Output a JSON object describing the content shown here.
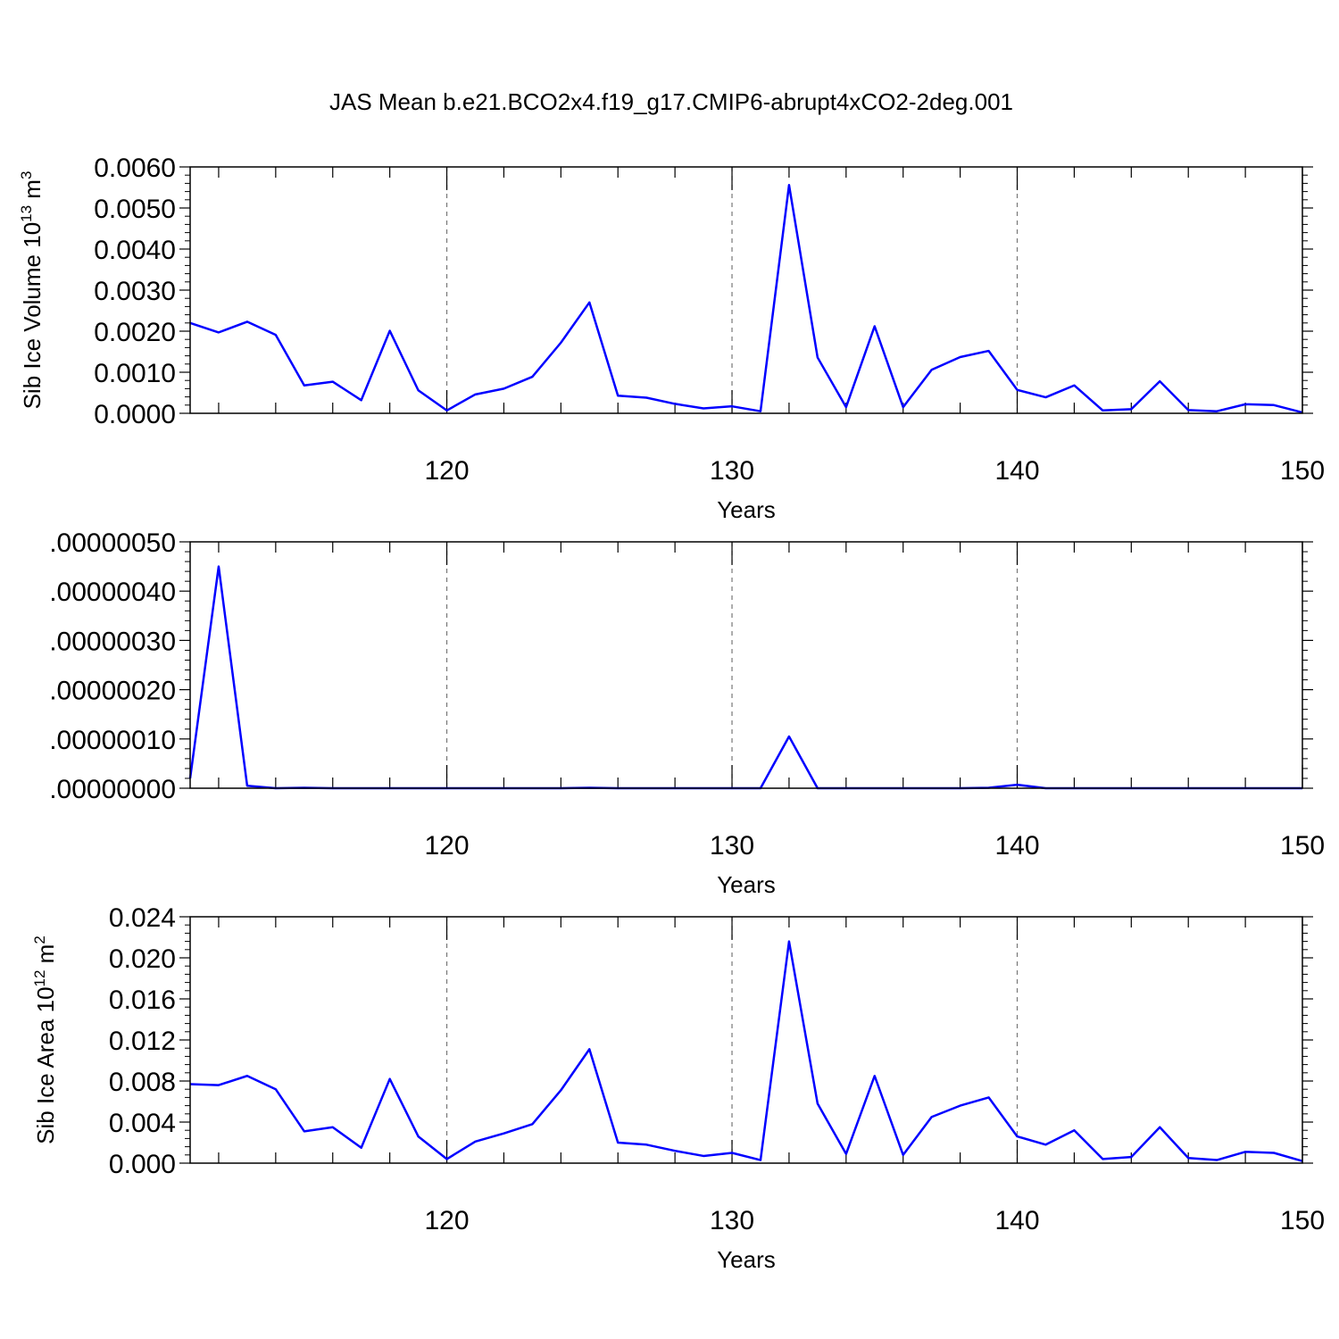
{
  "figure_title": "JAS Mean b.e21.BCO2x4.f19_g17.CMIP6-abrupt4xCO2-2deg.001",
  "line_color": "#0000ff",
  "chart_data": [
    {
      "type": "line",
      "ylabel": "Sib Ice Volume 10",
      "ylabel_exp": "13",
      "ylabel_unit": " m",
      "ylabel_unit_exp": "3",
      "xlabel": "Years",
      "xlim": [
        111,
        150
      ],
      "ylim": [
        0,
        0.006
      ],
      "yticks": [
        "0.0000",
        "0.0010",
        "0.0020",
        "0.0030",
        "0.0040",
        "0.0050",
        "0.0060"
      ],
      "ytick_values": [
        0,
        0.001,
        0.002,
        0.003,
        0.004,
        0.005,
        0.006
      ],
      "xticks": [
        "120",
        "130",
        "140",
        "150"
      ],
      "xtick_values": [
        120,
        130,
        140,
        150
      ],
      "grid": "dashed vertical at major x ticks",
      "x": [
        111,
        112,
        113,
        114,
        115,
        116,
        117,
        118,
        119,
        120,
        121,
        122,
        123,
        124,
        125,
        126,
        127,
        128,
        129,
        130,
        131,
        132,
        133,
        134,
        135,
        136,
        137,
        138,
        139,
        140,
        141,
        142,
        143,
        144,
        145,
        146,
        147,
        148,
        149,
        150
      ],
      "series": [
        {
          "values": [
            0.0022,
            0.00197,
            0.00223,
            0.00191,
            0.00068,
            0.00077,
            0.00032,
            0.00201,
            0.00056,
            7e-05,
            0.00046,
            0.0006,
            0.00089,
            0.00172,
            0.0027,
            0.00043,
            0.00038,
            0.00023,
            0.00012,
            0.00017,
            5e-05,
            0.00556,
            0.00136,
            0.00015,
            0.00212,
            0.00015,
            0.00106,
            0.00137,
            0.00152,
            0.00057,
            0.00039,
            0.00068,
            7e-05,
            0.0001,
            0.00078,
            8e-05,
            5e-05,
            0.00022,
            0.0002,
            2e-05
          ]
        }
      ]
    },
    {
      "type": "line",
      "xlabel": "Years",
      "xlim": [
        111,
        150
      ],
      "ylim": [
        0,
        5e-07
      ],
      "yticks": [
        ".00000000",
        ".00000010",
        ".00000020",
        ".00000030",
        ".00000040",
        ".00000050"
      ],
      "ytick_values": [
        0,
        1e-07,
        2e-07,
        3e-07,
        4e-07,
        5e-07
      ],
      "xticks": [
        "120",
        "130",
        "140",
        "150"
      ],
      "xtick_values": [
        120,
        130,
        140,
        150
      ],
      "grid": "dashed vertical at major x ticks",
      "x": [
        111,
        112,
        113,
        114,
        115,
        116,
        117,
        118,
        119,
        120,
        121,
        122,
        123,
        124,
        125,
        126,
        127,
        128,
        129,
        130,
        131,
        132,
        133,
        134,
        135,
        136,
        137,
        138,
        139,
        140,
        141,
        142,
        143,
        144,
        145,
        146,
        147,
        148,
        149,
        150
      ],
      "series": [
        {
          "values": [
            2e-08,
            4.5e-07,
            5e-09,
            0.0,
            1e-09,
            0.0,
            0.0,
            0.0,
            0.0,
            0.0,
            0.0,
            0.0,
            0.0,
            0.0,
            1e-09,
            0.0,
            0.0,
            0.0,
            0.0,
            0.0,
            0.0,
            1.05e-07,
            0.0,
            0.0,
            0.0,
            0.0,
            0.0,
            0.0,
            1e-09,
            7e-09,
            0.0,
            0.0,
            0.0,
            0.0,
            0.0,
            0.0,
            0.0,
            0.0,
            0.0,
            0.0
          ]
        }
      ]
    },
    {
      "type": "line",
      "ylabel": "Sib Ice Area 10",
      "ylabel_exp": "12",
      "ylabel_unit": " m",
      "ylabel_unit_exp": "2",
      "xlabel": "Years",
      "xlim": [
        111,
        150
      ],
      "ylim": [
        0,
        0.024
      ],
      "yticks": [
        "0.000",
        "0.004",
        "0.008",
        "0.012",
        "0.016",
        "0.020",
        "0.024"
      ],
      "ytick_values": [
        0,
        0.004,
        0.008,
        0.012,
        0.016,
        0.02,
        0.024
      ],
      "xticks": [
        "120",
        "130",
        "140",
        "150"
      ],
      "xtick_values": [
        120,
        130,
        140,
        150
      ],
      "grid": "dashed vertical at major x ticks",
      "x": [
        111,
        112,
        113,
        114,
        115,
        116,
        117,
        118,
        119,
        120,
        121,
        122,
        123,
        124,
        125,
        126,
        127,
        128,
        129,
        130,
        131,
        132,
        133,
        134,
        135,
        136,
        137,
        138,
        139,
        140,
        141,
        142,
        143,
        144,
        145,
        146,
        147,
        148,
        149,
        150
      ],
      "series": [
        {
          "values": [
            0.0077,
            0.0076,
            0.0085,
            0.0072,
            0.0031,
            0.0035,
            0.0015,
            0.0082,
            0.0026,
            0.0004,
            0.0021,
            0.0029,
            0.0038,
            0.0071,
            0.0111,
            0.002,
            0.0018,
            0.0012,
            0.0007,
            0.001,
            0.0003,
            0.0216,
            0.0058,
            0.0009,
            0.0085,
            0.0008,
            0.0045,
            0.0056,
            0.0064,
            0.0026,
            0.0018,
            0.0032,
            0.0004,
            0.0006,
            0.0035,
            0.0005,
            0.0003,
            0.0011,
            0.001,
            0.0002
          ]
        }
      ]
    }
  ]
}
